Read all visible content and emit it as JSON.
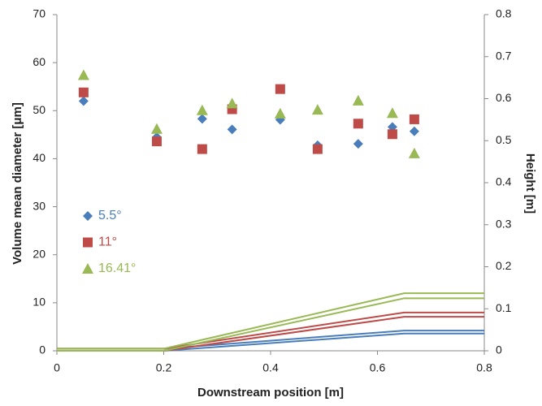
{
  "chart_data": {
    "type": "scatter",
    "x_label": "Downstream position [m]",
    "y_label": "Volume mean diameter [μm]",
    "y2_label": "Height [m]",
    "xlim": [
      0,
      0.8
    ],
    "xticks": [
      0,
      0.2,
      0.4,
      0.6,
      0.8
    ],
    "ylim": [
      0,
      70
    ],
    "yticks": [
      0,
      10,
      20,
      30,
      40,
      50,
      60,
      70
    ],
    "y2lim": [
      0,
      0.8
    ],
    "y2ticks": [
      0,
      0.1,
      0.2,
      0.3,
      0.4,
      0.5,
      0.6,
      0.7,
      0.8
    ],
    "grid": false,
    "legend": "left",
    "series": [
      {
        "name": "5.5°",
        "type": "scatter",
        "marker": "diamond",
        "color": "#4a7ebb",
        "x": [
          0.05,
          0.187,
          0.272,
          0.328,
          0.418,
          0.488,
          0.564,
          0.628,
          0.669
        ],
        "values": [
          52,
          44.5,
          48.3,
          46.1,
          48.1,
          42.8,
          43.1,
          46.6,
          45.7
        ]
      },
      {
        "name": "11°",
        "type": "scatter",
        "marker": "square",
        "color": "#be4b48",
        "x": [
          0.05,
          0.187,
          0.272,
          0.328,
          0.418,
          0.488,
          0.564,
          0.628,
          0.669
        ],
        "values": [
          53.8,
          43.6,
          42,
          50.3,
          54.5,
          42,
          47.3,
          45.1,
          48.2
        ]
      },
      {
        "name": "16.41°",
        "type": "scatter",
        "marker": "triangle",
        "color": "#98b954",
        "x": [
          0.05,
          0.187,
          0.272,
          0.328,
          0.418,
          0.488,
          0.564,
          0.628,
          0.669
        ],
        "values": [
          57.4,
          46.2,
          50.1,
          51.5,
          49.4,
          50.2,
          52.1,
          49.5,
          41.1
        ]
      },
      {
        "type": "line",
        "axis": "y2",
        "color": "#4a7ebb",
        "x": [
          0,
          0.2,
          0.65,
          0.8
        ],
        "values": [
          0,
          0,
          0.041,
          0.041
        ]
      },
      {
        "type": "line",
        "axis": "y2",
        "color": "#4a7ebb",
        "x": [
          0,
          0.2,
          0.65,
          0.8
        ],
        "values": [
          0.005,
          0.005,
          0.048,
          0.048
        ]
      },
      {
        "type": "line",
        "axis": "y2",
        "color": "#be4b48",
        "x": [
          0,
          0.2,
          0.65,
          0.8
        ],
        "values": [
          0,
          0,
          0.081,
          0.081
        ]
      },
      {
        "type": "line",
        "axis": "y2",
        "color": "#be4b48",
        "x": [
          0,
          0.2,
          0.65,
          0.8
        ],
        "values": [
          0.005,
          0.005,
          0.091,
          0.091
        ]
      },
      {
        "type": "line",
        "axis": "y2",
        "color": "#98b954",
        "x": [
          0,
          0.2,
          0.65,
          0.8
        ],
        "values": [
          0,
          0,
          0.125,
          0.125
        ]
      },
      {
        "type": "line",
        "axis": "y2",
        "color": "#98b954",
        "x": [
          0,
          0.2,
          0.65,
          0.8
        ],
        "values": [
          0.005,
          0.005,
          0.137,
          0.137
        ]
      }
    ]
  }
}
